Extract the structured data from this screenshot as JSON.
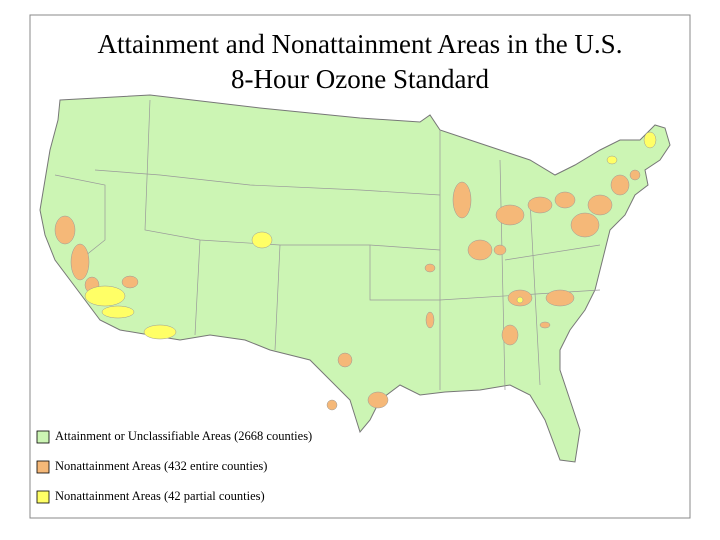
{
  "map": {
    "title": [
      "Attainment and Nonattainment Areas in the U.S.",
      "8-Hour Ozone Standard"
    ],
    "legend": [
      {
        "label": "Attainment or Unclassifiable Areas (2668 counties)",
        "color": "#ccf5b4"
      },
      {
        "label": "Nonattainment Areas (432 entire counties)",
        "color": "#f5b878"
      },
      {
        "label": "Nonattainment Areas (42 partial counties)",
        "color": "#ffff66"
      }
    ]
  }
}
